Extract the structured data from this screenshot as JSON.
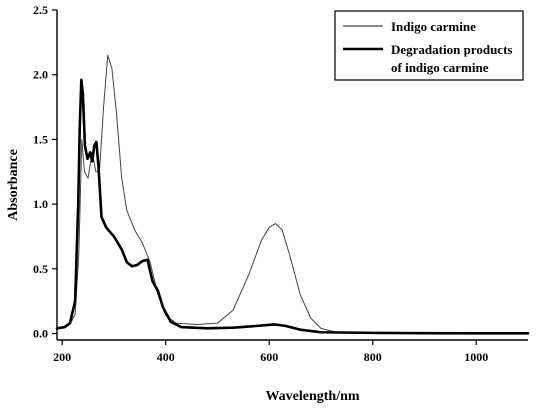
{
  "chart_data": {
    "type": "line",
    "xlabel": "Wavelength/nm",
    "ylabel": "Absorbance",
    "xlim": [
      190,
      1100
    ],
    "ylim": [
      -0.05,
      2.5
    ],
    "xticks": [
      200,
      400,
      600,
      800,
      1000
    ],
    "yticks": [
      0.0,
      0.5,
      1.0,
      1.5,
      2.0,
      2.5
    ],
    "xtick_labels": [
      "200",
      "400",
      "600",
      "800",
      "1000"
    ],
    "ytick_labels": [
      "0.0",
      "0.5",
      "1.0",
      "1.5",
      "2.0",
      "2.5"
    ],
    "legend_position": "top-right",
    "series": [
      {
        "name": "Indigo carmine",
        "style": "thin",
        "color": "#444444",
        "points": [
          [
            190,
            0.04
          ],
          [
            205,
            0.05
          ],
          [
            215,
            0.07
          ],
          [
            225,
            0.15
          ],
          [
            232,
            0.6
          ],
          [
            238,
            1.5
          ],
          [
            243,
            1.25
          ],
          [
            250,
            1.2
          ],
          [
            258,
            1.4
          ],
          [
            265,
            1.25
          ],
          [
            272,
            1.25
          ],
          [
            280,
            1.75
          ],
          [
            288,
            2.15
          ],
          [
            296,
            2.05
          ],
          [
            305,
            1.7
          ],
          [
            315,
            1.2
          ],
          [
            325,
            0.95
          ],
          [
            340,
            0.8
          ],
          [
            355,
            0.7
          ],
          [
            370,
            0.55
          ],
          [
            385,
            0.3
          ],
          [
            400,
            0.14
          ],
          [
            420,
            0.08
          ],
          [
            460,
            0.07
          ],
          [
            500,
            0.08
          ],
          [
            530,
            0.18
          ],
          [
            560,
            0.45
          ],
          [
            585,
            0.72
          ],
          [
            600,
            0.82
          ],
          [
            612,
            0.85
          ],
          [
            625,
            0.8
          ],
          [
            640,
            0.6
          ],
          [
            660,
            0.3
          ],
          [
            680,
            0.12
          ],
          [
            700,
            0.04
          ],
          [
            730,
            0.01
          ],
          [
            800,
            0.005
          ],
          [
            900,
            0.003
          ],
          [
            1000,
            0.002
          ],
          [
            1100,
            0.002
          ]
        ]
      },
      {
        "name": "Degradation products\nof indigo carmine",
        "style": "thick",
        "color": "#000000",
        "points": [
          [
            190,
            0.04
          ],
          [
            205,
            0.05
          ],
          [
            215,
            0.08
          ],
          [
            225,
            0.25
          ],
          [
            231,
            1.0
          ],
          [
            234,
            1.6
          ],
          [
            237,
            1.96
          ],
          [
            240,
            1.85
          ],
          [
            244,
            1.45
          ],
          [
            249,
            1.35
          ],
          [
            254,
            1.4
          ],
          [
            258,
            1.33
          ],
          [
            262,
            1.45
          ],
          [
            266,
            1.48
          ],
          [
            270,
            1.3
          ],
          [
            276,
            0.9
          ],
          [
            285,
            0.82
          ],
          [
            300,
            0.75
          ],
          [
            315,
            0.65
          ],
          [
            325,
            0.55
          ],
          [
            335,
            0.52
          ],
          [
            345,
            0.53
          ],
          [
            355,
            0.56
          ],
          [
            365,
            0.57
          ],
          [
            370,
            0.48
          ],
          [
            375,
            0.4
          ],
          [
            385,
            0.33
          ],
          [
            395,
            0.2
          ],
          [
            410,
            0.09
          ],
          [
            430,
            0.05
          ],
          [
            480,
            0.04
          ],
          [
            530,
            0.045
          ],
          [
            580,
            0.06
          ],
          [
            610,
            0.07
          ],
          [
            630,
            0.06
          ],
          [
            660,
            0.03
          ],
          [
            700,
            0.01
          ],
          [
            800,
            0.005
          ],
          [
            900,
            0.003
          ],
          [
            1000,
            0.002
          ],
          [
            1100,
            0.002
          ]
        ]
      }
    ]
  },
  "legend": {
    "entry1": "Indigo carmine",
    "entry2_line1": "Degradation products",
    "entry2_line2": "of indigo carmine"
  },
  "axes": {
    "xlabel": "Wavelength/nm",
    "ylabel": "Absorbance"
  }
}
